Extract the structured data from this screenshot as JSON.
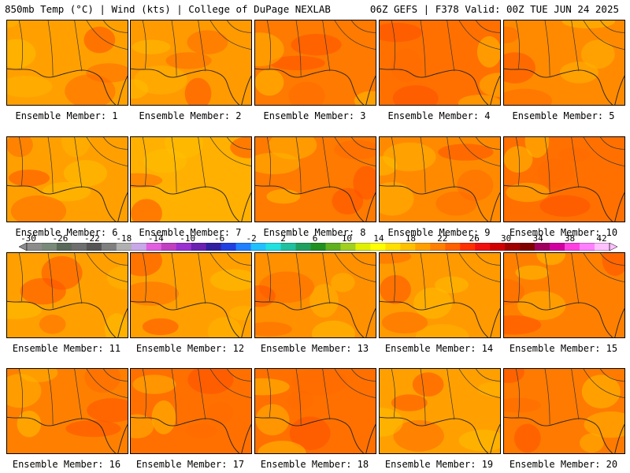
{
  "header": {
    "left": "850mb Temp (°C) | Wind (kts) | College of DuPage NEXLAB",
    "right": "06Z GEFS | F378 Valid: 00Z TUE JUN 24 2025"
  },
  "colorbar": {
    "ticks": [
      "-30",
      "-26",
      "-22",
      "-18",
      "-14",
      "-10",
      "-6",
      "-2",
      "2",
      "6",
      "10",
      "14",
      "18",
      "22",
      "26",
      "30",
      "34",
      "38",
      "42"
    ],
    "colors": [
      "#8c8c8c",
      "#7a8a7a",
      "#5a6a5a",
      "#6e6e6e",
      "#555555",
      "#7f7f7f",
      "#b0b0b0",
      "#c8a8e8",
      "#e060e0",
      "#c040c0",
      "#9a30d0",
      "#6a20b0",
      "#3020a0",
      "#2040e0",
      "#2080ff",
      "#20c0ff",
      "#20e0e0",
      "#20c0a0",
      "#20a060",
      "#209020",
      "#60b020",
      "#a0d020",
      "#e0f000",
      "#ffff00",
      "#ffe000",
      "#ffc000",
      "#ffa000",
      "#ff8000",
      "#ff6000",
      "#ff3000",
      "#f01010",
      "#d00000",
      "#a00000",
      "#800000",
      "#a00060",
      "#d000a0",
      "#ff40e0",
      "#ff80ff",
      "#ffc0ff"
    ]
  },
  "panels": [
    {
      "label": "Ensemble Member: 1",
      "base": "#ffa000"
    },
    {
      "label": "Ensemble Member: 2",
      "base": "#ff9a00"
    },
    {
      "label": "Ensemble Member: 3",
      "base": "#ff7a00"
    },
    {
      "label": "Ensemble Member: 4",
      "base": "#ff7000"
    },
    {
      "label": "Ensemble Member: 5",
      "base": "#ff8a00"
    },
    {
      "label": "Ensemble Member: 6",
      "base": "#ffa000"
    },
    {
      "label": "Ensemble Member: 7",
      "base": "#ffb000"
    },
    {
      "label": "Ensemble Member: 8",
      "base": "#ff7a00"
    },
    {
      "label": "Ensemble Member: 9",
      "base": "#ff8a00"
    },
    {
      "label": "Ensemble Member: 10",
      "base": "#ff7000"
    },
    {
      "label": "Ensemble Member: 11",
      "base": "#ffa000"
    },
    {
      "label": "Ensemble Member: 12",
      "base": "#ffa000"
    },
    {
      "label": "Ensemble Member: 13",
      "base": "#ff9000"
    },
    {
      "label": "Ensemble Member: 14",
      "base": "#ff9a00"
    },
    {
      "label": "Ensemble Member: 15",
      "base": "#ff8000"
    },
    {
      "label": "Ensemble Member: 16",
      "base": "#ff8000"
    },
    {
      "label": "Ensemble Member: 17",
      "base": "#ff7000"
    },
    {
      "label": "Ensemble Member: 18",
      "base": "#ff7000"
    },
    {
      "label": "Ensemble Member: 19",
      "base": "#ffa000"
    },
    {
      "label": "Ensemble Member: 20",
      "base": "#ff7a00"
    }
  ]
}
